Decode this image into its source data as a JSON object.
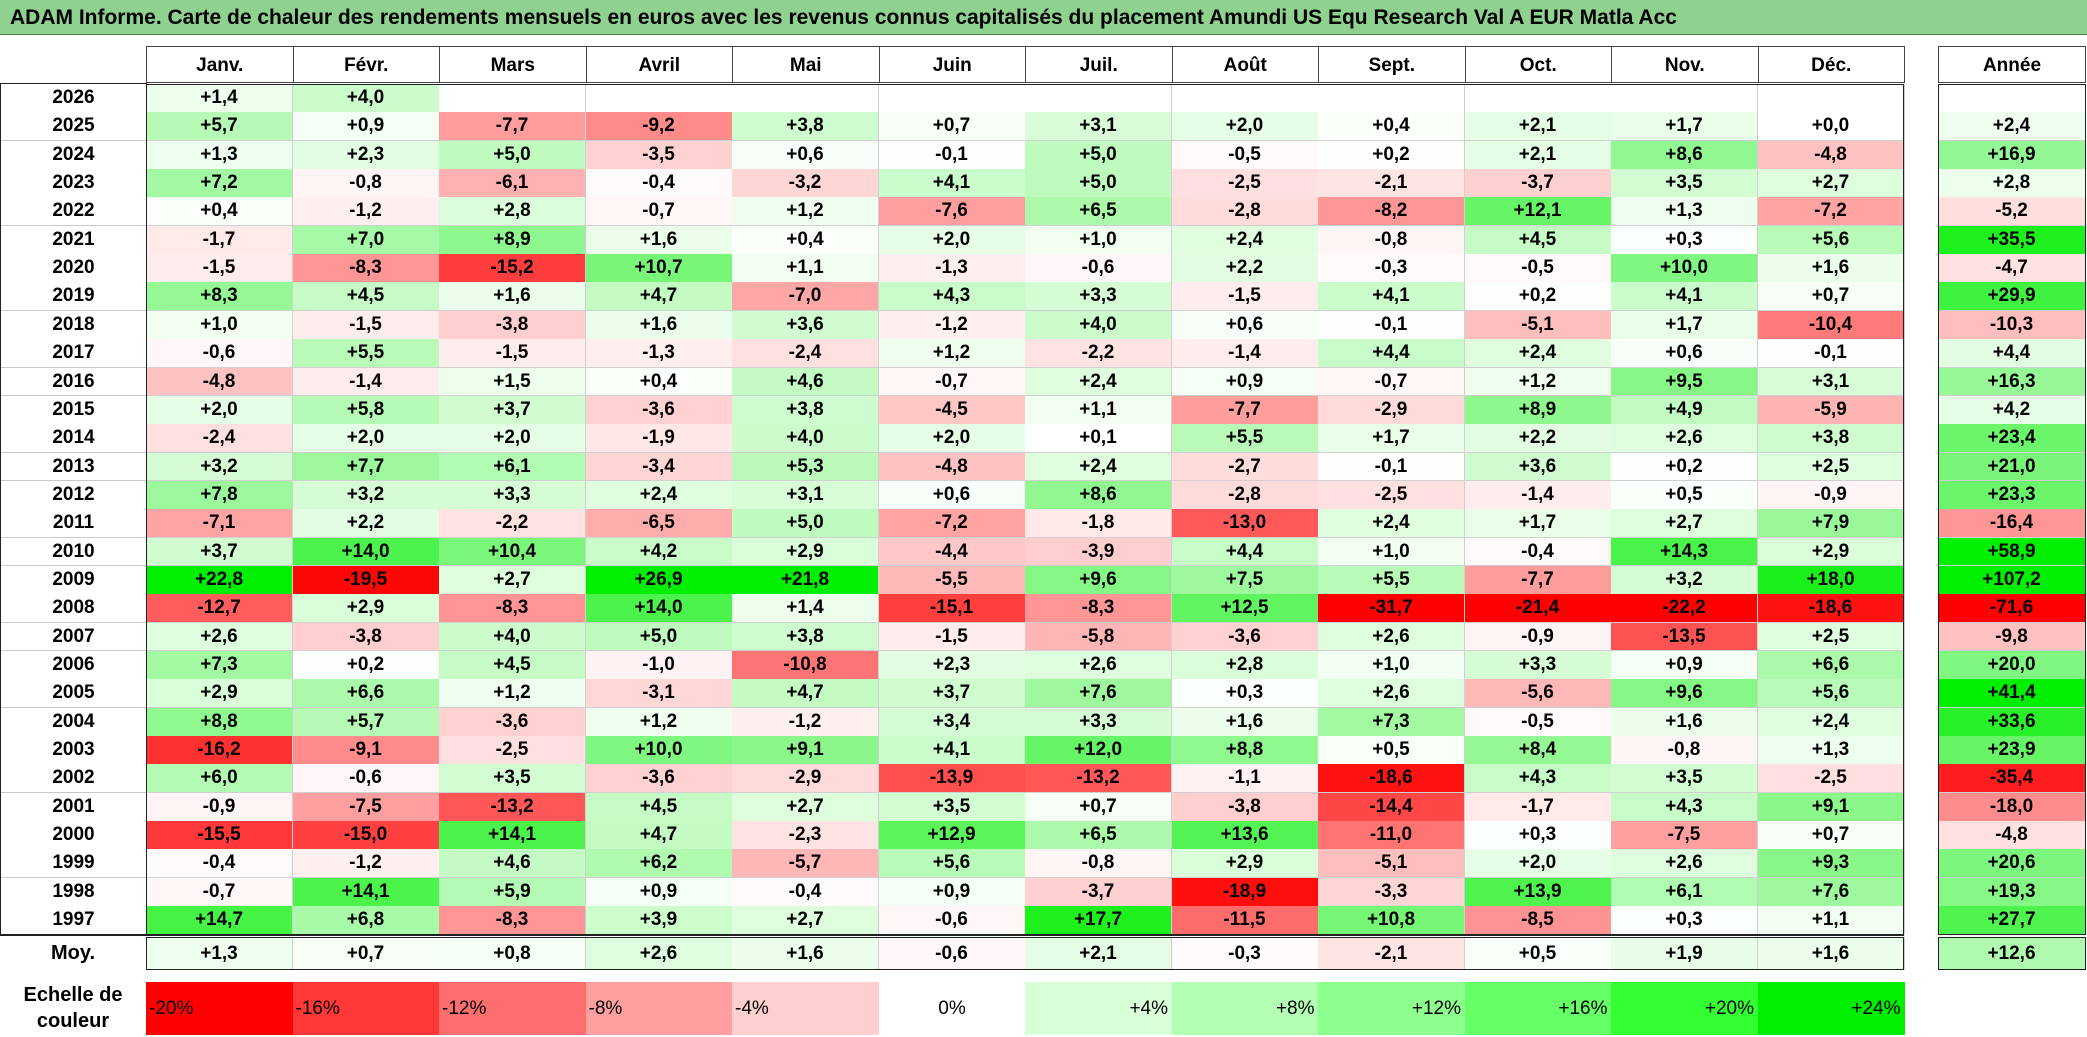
{
  "title": "ADAM Informe. Carte de chaleur des rendements mensuels en euros avec les revenus connus capitalisés du placement Amundi US Equ Research Val A EUR Matla Acc",
  "chart_data": {
    "type": "heatmap",
    "months": [
      "Janv.",
      "Févr.",
      "Mars",
      "Avril",
      "Mai",
      "Juin",
      "Juil.",
      "Août",
      "Sept.",
      "Oct.",
      "Nov.",
      "Déc."
    ],
    "year_header": "Année",
    "rows": [
      {
        "year": "2026",
        "values": [
          1.4,
          4.0,
          null,
          null,
          null,
          null,
          null,
          null,
          null,
          null,
          null,
          null
        ],
        "annual": null
      },
      {
        "year": "2025",
        "values": [
          5.7,
          0.9,
          -7.7,
          -9.2,
          3.8,
          0.7,
          3.1,
          2.0,
          0.4,
          2.1,
          1.7,
          0.0
        ],
        "annual": 2.4
      },
      {
        "year": "2024",
        "values": [
          1.3,
          2.3,
          5.0,
          -3.5,
          0.6,
          -0.1,
          5.0,
          -0.5,
          0.2,
          2.1,
          8.6,
          -4.8
        ],
        "annual": 16.9
      },
      {
        "year": "2023",
        "values": [
          7.2,
          -0.8,
          -6.1,
          -0.4,
          -3.2,
          4.1,
          5.0,
          -2.5,
          -2.1,
          -3.7,
          3.5,
          2.7
        ],
        "annual": 2.8
      },
      {
        "year": "2022",
        "values": [
          0.4,
          -1.2,
          2.8,
          -0.7,
          1.2,
          -7.6,
          6.5,
          -2.8,
          -8.2,
          12.1,
          1.3,
          -7.2
        ],
        "annual": -5.2
      },
      {
        "year": "2021",
        "values": [
          -1.7,
          7.0,
          8.9,
          1.6,
          0.4,
          2.0,
          1.0,
          2.4,
          -0.8,
          4.5,
          0.3,
          5.6
        ],
        "annual": 35.5
      },
      {
        "year": "2020",
        "values": [
          -1.5,
          -8.3,
          -15.2,
          10.7,
          1.1,
          -1.3,
          -0.6,
          2.2,
          -0.3,
          -0.5,
          10.0,
          1.6
        ],
        "annual": -4.7
      },
      {
        "year": "2019",
        "values": [
          8.3,
          4.5,
          1.6,
          4.7,
          -7.0,
          4.3,
          3.3,
          -1.5,
          4.1,
          0.2,
          4.1,
          0.7
        ],
        "annual": 29.9
      },
      {
        "year": "2018",
        "values": [
          1.0,
          -1.5,
          -3.8,
          1.6,
          3.6,
          -1.2,
          4.0,
          0.6,
          -0.1,
          -5.1,
          1.7,
          -10.4
        ],
        "annual": -10.3
      },
      {
        "year": "2017",
        "values": [
          -0.6,
          5.5,
          -1.5,
          -1.3,
          -2.4,
          1.2,
          -2.2,
          -1.4,
          4.4,
          2.4,
          0.6,
          -0.1
        ],
        "annual": 4.4
      },
      {
        "year": "2016",
        "values": [
          -4.8,
          -1.4,
          1.5,
          0.4,
          4.6,
          -0.7,
          2.4,
          0.9,
          -0.7,
          1.2,
          9.5,
          3.1
        ],
        "annual": 16.3
      },
      {
        "year": "2015",
        "values": [
          2.0,
          5.8,
          3.7,
          -3.6,
          3.8,
          -4.5,
          1.1,
          -7.7,
          -2.9,
          8.9,
          4.9,
          -5.9
        ],
        "annual": 4.2
      },
      {
        "year": "2014",
        "values": [
          -2.4,
          2.0,
          2.0,
          -1.9,
          4.0,
          2.0,
          0.1,
          5.5,
          1.7,
          2.2,
          2.6,
          3.8
        ],
        "annual": 23.4
      },
      {
        "year": "2013",
        "values": [
          3.2,
          7.7,
          6.1,
          -3.4,
          5.3,
          -4.8,
          2.4,
          -2.7,
          -0.1,
          3.6,
          0.2,
          2.5
        ],
        "annual": 21.0
      },
      {
        "year": "2012",
        "values": [
          7.8,
          3.2,
          3.3,
          2.4,
          3.1,
          0.6,
          8.6,
          -2.8,
          -2.5,
          -1.4,
          0.5,
          -0.9
        ],
        "annual": 23.3
      },
      {
        "year": "2011",
        "values": [
          -7.1,
          2.2,
          -2.2,
          -6.5,
          5.0,
          -7.2,
          -1.8,
          -13.0,
          2.4,
          1.7,
          2.7,
          7.9
        ],
        "annual": -16.4
      },
      {
        "year": "2010",
        "values": [
          3.7,
          14.0,
          10.4,
          4.2,
          2.9,
          -4.4,
          -3.9,
          4.4,
          1.0,
          -0.4,
          14.3,
          2.9
        ],
        "annual": 58.9
      },
      {
        "year": "2009",
        "values": [
          22.8,
          -19.5,
          2.7,
          26.9,
          21.8,
          -5.5,
          9.6,
          7.5,
          5.5,
          -7.7,
          3.2,
          18.0
        ],
        "annual": 107.2
      },
      {
        "year": "2008",
        "values": [
          -12.7,
          2.9,
          -8.3,
          14.0,
          1.4,
          -15.1,
          -8.3,
          12.5,
          -31.7,
          -21.4,
          -22.2,
          -18.6
        ],
        "annual": -71.6
      },
      {
        "year": "2007",
        "values": [
          2.6,
          -3.8,
          4.0,
          5.0,
          3.8,
          -1.5,
          -5.8,
          -3.6,
          2.6,
          -0.9,
          -13.5,
          2.5
        ],
        "annual": -9.8
      },
      {
        "year": "2006",
        "values": [
          7.3,
          0.2,
          4.5,
          -1.0,
          -10.8,
          2.3,
          2.6,
          2.8,
          1.0,
          3.3,
          0.9,
          6.6
        ],
        "annual": 20.0
      },
      {
        "year": "2005",
        "values": [
          2.9,
          6.6,
          1.2,
          -3.1,
          4.7,
          3.7,
          7.6,
          0.3,
          2.6,
          -5.6,
          9.6,
          5.6
        ],
        "annual": 41.4
      },
      {
        "year": "2004",
        "values": [
          8.8,
          5.7,
          -3.6,
          1.2,
          -1.2,
          3.4,
          3.3,
          1.6,
          7.3,
          -0.5,
          1.6,
          2.4
        ],
        "annual": 33.6
      },
      {
        "year": "2003",
        "values": [
          -16.2,
          -9.1,
          -2.5,
          10.0,
          9.1,
          4.1,
          12.0,
          8.8,
          0.5,
          8.4,
          -0.8,
          1.3
        ],
        "annual": 23.9
      },
      {
        "year": "2002",
        "values": [
          6.0,
          -0.6,
          3.5,
          -3.6,
          -2.9,
          -13.9,
          -13.2,
          -1.1,
          -18.6,
          4.3,
          3.5,
          -2.5
        ],
        "annual": -35.4
      },
      {
        "year": "2001",
        "values": [
          -0.9,
          -7.5,
          -13.2,
          4.5,
          2.7,
          3.5,
          0.7,
          -3.8,
          -14.4,
          -1.7,
          4.3,
          9.1
        ],
        "annual": -18.0
      },
      {
        "year": "2000",
        "values": [
          -15.5,
          -15.0,
          14.1,
          4.7,
          -2.3,
          12.9,
          6.5,
          13.6,
          -11.0,
          0.3,
          -7.5,
          0.7
        ],
        "annual": -4.8
      },
      {
        "year": "1999",
        "values": [
          -0.4,
          -1.2,
          4.6,
          6.2,
          -5.7,
          5.6,
          -0.8,
          2.9,
          -5.1,
          2.0,
          2.6,
          9.3
        ],
        "annual": 20.6
      },
      {
        "year": "1998",
        "values": [
          -0.7,
          14.1,
          5.9,
          0.9,
          -0.4,
          0.9,
          -3.7,
          -18.9,
          -3.3,
          13.9,
          6.1,
          7.6
        ],
        "annual": 19.3
      },
      {
        "year": "1997",
        "values": [
          14.7,
          6.8,
          -8.3,
          3.9,
          2.7,
          -0.6,
          17.7,
          -11.5,
          10.8,
          -8.5,
          0.3,
          1.1
        ],
        "annual": 27.7
      }
    ],
    "average": {
      "label": "Moy.",
      "values": [
        1.3,
        0.7,
        0.8,
        2.6,
        1.6,
        -0.6,
        2.1,
        -0.3,
        -2.1,
        0.5,
        1.9,
        1.6
      ],
      "annual": 12.6
    },
    "scale": {
      "label": "Echelle de couleur",
      "steps": [
        "-20%",
        "-16%",
        "-12%",
        "-8%",
        "-4%",
        "0%",
        "+4%",
        "+8%",
        "+12%",
        "+16%",
        "+20%",
        "+24%"
      ],
      "colors": [
        "#ff0000",
        "#ff3737",
        "#ff6e6e",
        "#ff9f9f",
        "#ffcfcf",
        "#ffffff",
        "#d9ffd9",
        "#b3ffb3",
        "#8cff8c",
        "#66ff66",
        "#33ff33",
        "#00ee00"
      ]
    }
  }
}
